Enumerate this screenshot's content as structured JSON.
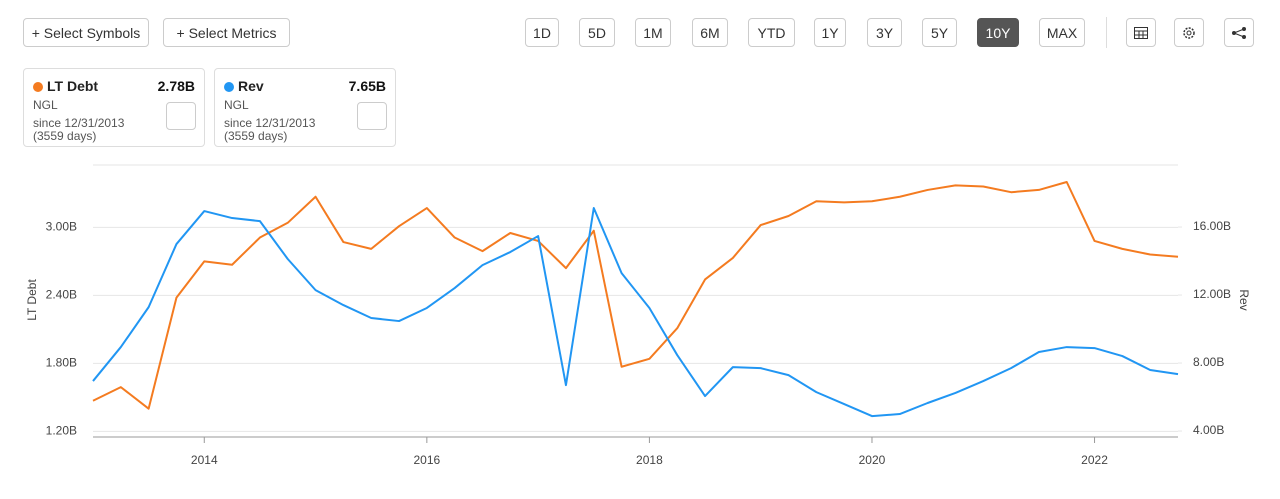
{
  "toolbar": {
    "add_buttons": [
      "+ Select Symbols",
      "+ Select Metrics"
    ],
    "ranges": [
      {
        "label": "1D"
      },
      {
        "label": "5D"
      },
      {
        "label": "1M"
      },
      {
        "label": "6M"
      },
      {
        "label": "YTD"
      },
      {
        "label": "1Y"
      },
      {
        "label": "3Y"
      },
      {
        "label": "5Y"
      },
      {
        "label": "10Y",
        "active": true
      },
      {
        "label": "MAX"
      }
    ]
  },
  "cards": [
    {
      "value": "2.78B",
      "symbol": "NGL",
      "since": "since 12/31/2013",
      "days": "(3559 days)"
    },
    {
      "value": "7.65B",
      "symbol": "NGL",
      "since": "since 12/31/2013",
      "days": "(3559 days)"
    }
  ],
  "chart_data": {
    "type": "line",
    "x": [
      2013,
      2013.25,
      2013.5,
      2013.75,
      2014,
      2014.25,
      2014.5,
      2014.75,
      2015,
      2015.25,
      2015.5,
      2015.75,
      2016,
      2016.25,
      2016.5,
      2016.75,
      2017,
      2017.25,
      2017.5,
      2017.75,
      2018,
      2018.25,
      2018.5,
      2018.75,
      2019,
      2019.25,
      2019.5,
      2019.75,
      2020,
      2020.25,
      2020.5,
      2020.75,
      2021,
      2021.25,
      2021.5,
      2021.75,
      2022,
      2022.25,
      2022.5,
      2022.75
    ],
    "xlim": [
      2013,
      2022.75
    ],
    "xticks": [
      2014,
      2016,
      2018,
      2020,
      2022
    ],
    "ylim": [
      1.15,
      3.55
    ],
    "yticks": [
      {
        "value": 1.2,
        "label": "1.20B"
      },
      {
        "value": 1.8,
        "label": "1.80B"
      },
      {
        "value": 2.4,
        "label": "2.40B"
      },
      {
        "value": 3.0,
        "label": "3.00B"
      }
    ],
    "y2lim": [
      3.65,
      19.65
    ],
    "y2ticks": [
      {
        "value": 4,
        "label": "4.00B"
      },
      {
        "value": 8,
        "label": "8.00B"
      },
      {
        "value": 12,
        "label": "12.00B"
      },
      {
        "value": 16,
        "label": "16.00B"
      }
    ],
    "ylabel": "LT Debt",
    "y2label": "Rev",
    "grid": true,
    "series": [
      {
        "name": "LT Debt",
        "color": "#f47b20",
        "values": [
          1.47,
          1.59,
          1.4,
          2.38,
          2.7,
          2.67,
          2.91,
          3.04,
          3.27,
          2.87,
          2.81,
          3.01,
          3.17,
          2.91,
          2.79,
          2.95,
          2.88,
          2.64,
          2.97,
          1.77,
          1.84,
          2.11,
          2.54,
          2.73,
          3.02,
          3.1,
          3.23,
          3.22,
          3.23,
          3.27,
          3.33,
          3.37,
          3.36,
          3.31,
          3.33,
          3.4,
          2.88,
          2.81,
          2.76,
          2.74
        ]
      },
      {
        "name": "Rev",
        "color": "#2196f3",
        "axis": "y2",
        "values": [
          6.94,
          8.94,
          11.29,
          15.0,
          16.94,
          16.53,
          16.35,
          14.12,
          12.29,
          11.41,
          10.65,
          10.47,
          11.24,
          12.41,
          13.76,
          14.53,
          15.47,
          6.7,
          17.12,
          13.29,
          11.24,
          8.47,
          6.06,
          7.76,
          7.7,
          7.29,
          6.29,
          5.59,
          4.88,
          5.0,
          5.65,
          6.24,
          6.94,
          7.7,
          8.65,
          8.94,
          8.88,
          8.41,
          7.59,
          7.35
        ]
      }
    ]
  }
}
